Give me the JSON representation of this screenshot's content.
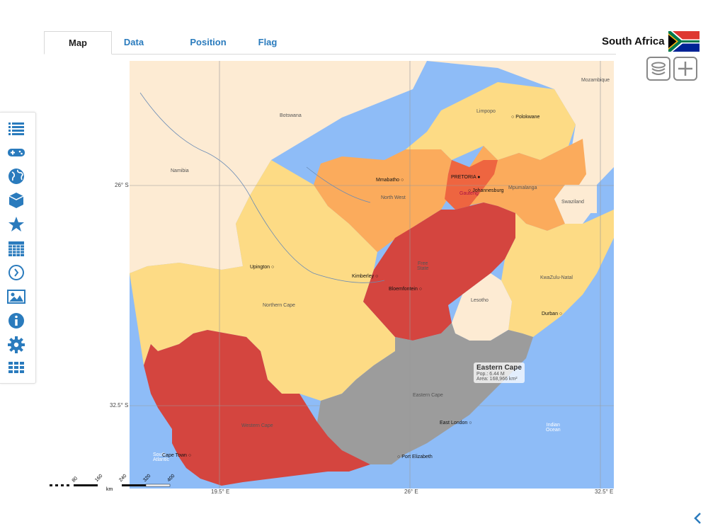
{
  "tabs": [
    {
      "label": "Map"
    },
    {
      "label": "Data"
    },
    {
      "label": "Position"
    },
    {
      "label": "Flag"
    }
  ],
  "country": "South Africa",
  "sidebar_icons": [
    "list-icon",
    "gamepad-icon",
    "globe-icon",
    "cube-icon",
    "star-icon",
    "calendar-icon",
    "clock-icon",
    "image-icon",
    "info-icon",
    "gear-icon",
    "grid-icon"
  ],
  "map": {
    "regions": {
      "namibia": "Namibia",
      "botswana": "Botswana",
      "mozambique": "Mozambique",
      "limpopo": "Limpopo",
      "mpumalanga": "Mpumalanga",
      "swaziland": "Swaziland",
      "north_west": "North West",
      "gauteng": "Gauteng",
      "free_state": "Free\nState",
      "kwazulu_natal": "KwaZulu-Natal",
      "lesotho": "Lesotho",
      "northern_cape": "Northern Cape",
      "eastern_cape": "Eastern Cape",
      "western_cape": "Western Cape",
      "indian_ocean": "Indian\nOcean",
      "south_atlantic": "South\nAtlantic"
    },
    "cities": {
      "polokwane": "Polokwane",
      "pretoria": "PRETORIA",
      "johannesburg": "Johannesburg",
      "mmabatho": "Mmabatho",
      "kimberley": "Kimberley",
      "bloemfontein": "Bloemfontein",
      "upington": "Upington",
      "durban": "Durban",
      "east_london": "East London",
      "port_elizabeth": "Port Elizabeth",
      "cape_town": "Cape Town"
    },
    "latitudes": [
      "26° S",
      "32.5° S"
    ],
    "longitudes": [
      "19.5° E",
      "26° E",
      "32.5° E"
    ],
    "colors": {
      "ocean": "#8ebcf7",
      "neighbor": "#fdebd3",
      "low": "#fddb85",
      "mid": "#fbab5c",
      "high": "#d4453f",
      "top": "#ee6540",
      "selected": "#9c9c9c"
    },
    "tooltip": {
      "title": "Eastern Cape",
      "population": "Pop.: 6.44 M",
      "area": "Area: 168,966 km²"
    },
    "scale": {
      "ticks": [
        "80",
        "160",
        "240",
        "320",
        "400"
      ],
      "unit": "km"
    }
  }
}
